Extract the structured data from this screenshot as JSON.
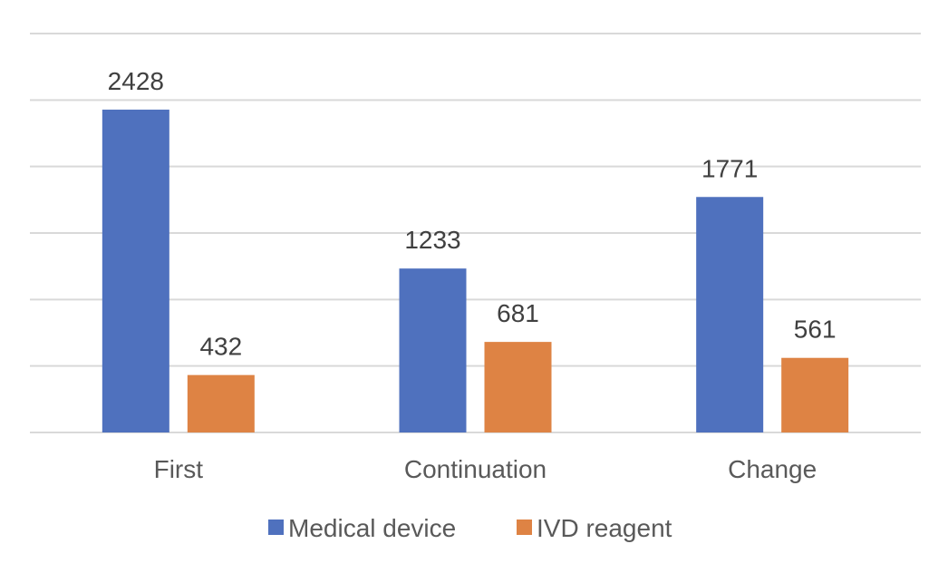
{
  "chart_data": {
    "type": "bar",
    "title": "",
    "xlabel": "",
    "ylabel": "",
    "categories": [
      "First",
      "Continuation",
      "Change"
    ],
    "series": [
      {
        "name": "Medical device",
        "color": "#4f71be",
        "values": [
          2428,
          1233,
          1771
        ]
      },
      {
        "name": "IVD reagent",
        "color": "#de8344",
        "values": [
          432,
          681,
          561
        ]
      }
    ],
    "ylim": [
      0,
      3000
    ],
    "grid_step": 500,
    "grid": true,
    "legend": "bottom",
    "data_labels": true
  }
}
